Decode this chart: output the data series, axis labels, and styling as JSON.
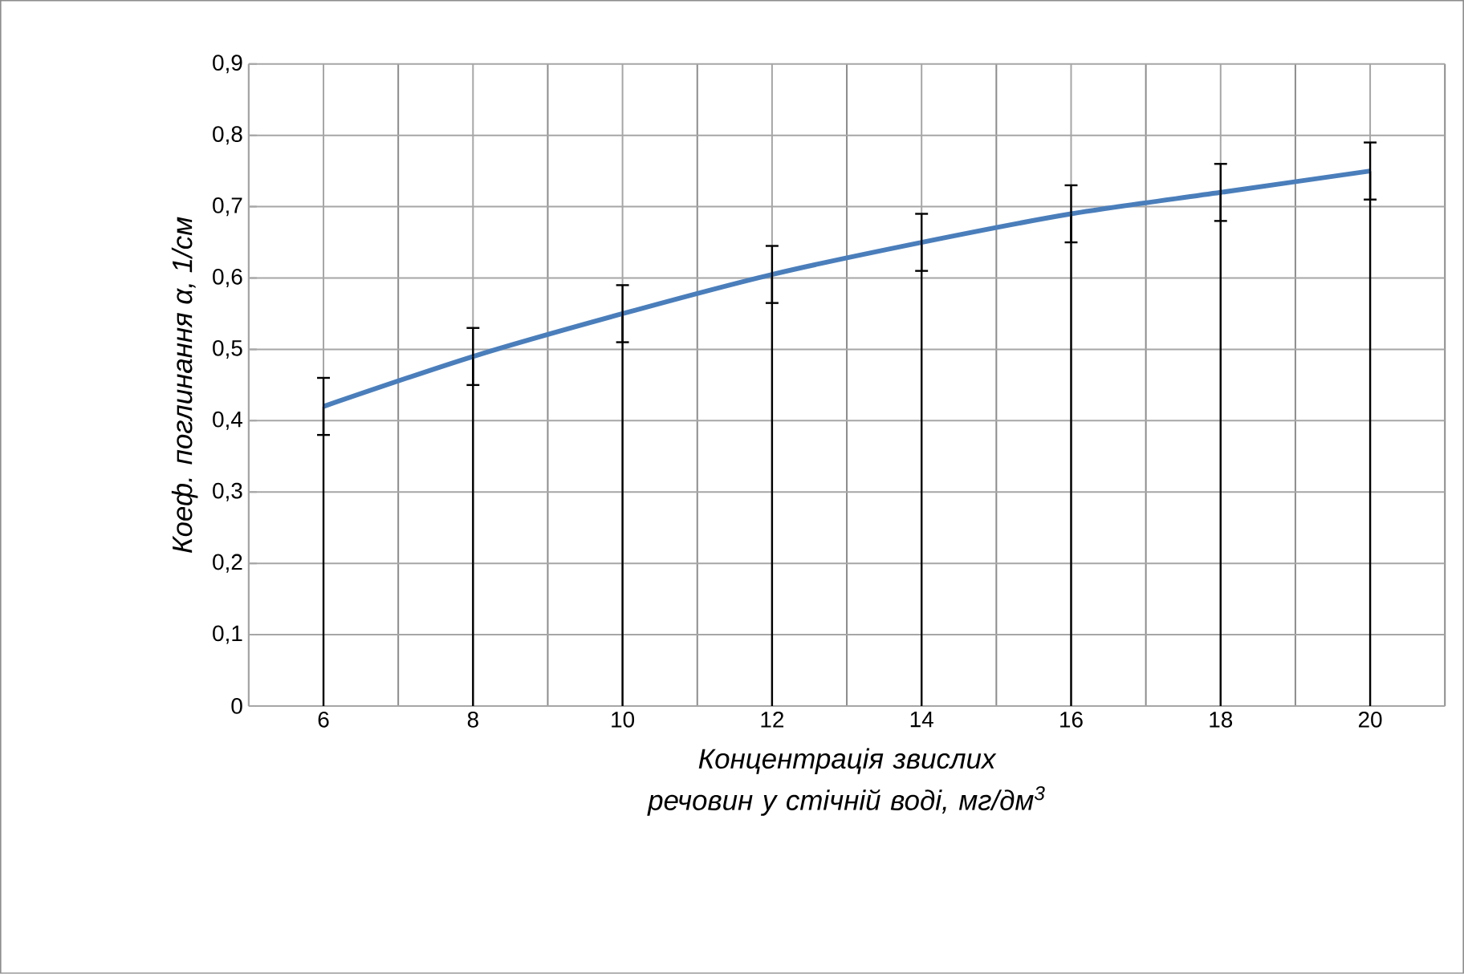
{
  "chart_data": {
    "type": "line",
    "xlabel": "Концентрація звислих речовин у стічній воді, мг/дм$^{3}$",
    "ylabel": "Коеф. поглинання α, 1/см",
    "categories": [
      "6",
      "8",
      "10",
      "12",
      "14",
      "16",
      "18",
      "20"
    ],
    "series": [
      {
        "type": "bar",
        "color": "#000000",
        "values": [
          0.42,
          0.49,
          0.55,
          0.605,
          0.65,
          0.69,
          0.72,
          0.75
        ]
      },
      {
        "color": "#4a7ebb",
        "values": [
          0.42,
          0.49,
          0.55,
          0.605,
          0.65,
          0.69,
          0.72,
          0.75
        ],
        "errors": [
          0.04,
          0.04,
          0.04,
          0.04,
          0.04,
          0.04,
          0.04,
          0.04
        ]
      }
    ],
    "ylim": [
      0,
      0.9
    ],
    "yticks": [
      0,
      {
        "value": 0.1,
        "label": "0,1"
      },
      {
        "value": 0.2,
        "label": "0,2"
      },
      {
        "value": 0.3,
        "label": "0,3"
      },
      {
        "value": 0.4,
        "label": "0,4"
      },
      {
        "value": 0.5,
        "label": "0,5"
      },
      {
        "value": 0.6,
        "label": "0,6"
      },
      {
        "value": 0.7,
        "label": "0,7"
      },
      {
        "value": 0.8,
        "label": "0,8"
      },
      {
        "value": 0.9,
        "label": "0,9"
      }
    ],
    "grid": true,
    "marker": "none",
    "line_style": "solid"
  }
}
